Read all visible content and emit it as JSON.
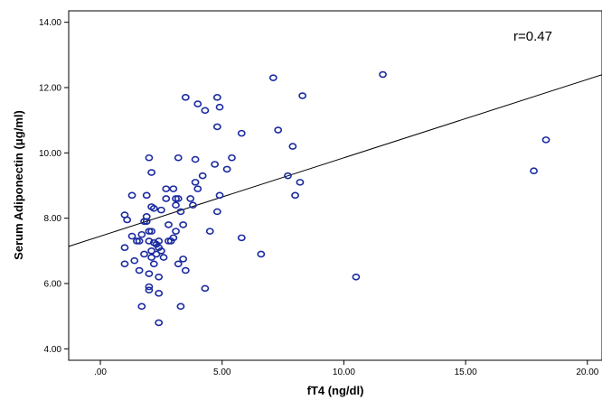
{
  "chart_data": {
    "type": "scatter",
    "xlabel": "fT4 (ng/dl)",
    "ylabel": "Serum Adiponectin (μg/ml)",
    "xlim": [
      -1.3,
      20.6
    ],
    "ylim": [
      3.65,
      14.35
    ],
    "x_ticks": [
      0,
      5,
      10,
      15,
      20
    ],
    "x_tick_labels": [
      ".00",
      "5.00",
      "10.00",
      "15.00",
      "20.00"
    ],
    "y_ticks": [
      4,
      6,
      8,
      10,
      12,
      14
    ],
    "y_tick_labels": [
      "4.00",
      "6.00",
      "8.00",
      "10.00",
      "12.00",
      "14.00"
    ],
    "annotation": "r=0.47",
    "marker_color": "#1a2aa0",
    "fit_line": {
      "intercept": 7.45,
      "slope": 0.24
    },
    "series": [
      {
        "points": [
          [
            1.0,
            8.1
          ],
          [
            1.1,
            7.95
          ],
          [
            1.0,
            7.1
          ],
          [
            1.0,
            6.6
          ],
          [
            1.3,
            8.7
          ],
          [
            1.3,
            7.45
          ],
          [
            1.4,
            6.7
          ],
          [
            1.6,
            7.3
          ],
          [
            1.5,
            7.3
          ],
          [
            1.6,
            6.4
          ],
          [
            1.7,
            5.3
          ],
          [
            1.7,
            7.5
          ],
          [
            1.8,
            7.9
          ],
          [
            1.8,
            6.9
          ],
          [
            1.9,
            8.7
          ],
          [
            1.9,
            8.05
          ],
          [
            1.9,
            7.9
          ],
          [
            2.0,
            9.85
          ],
          [
            2.0,
            7.6
          ],
          [
            2.0,
            7.3
          ],
          [
            2.0,
            6.3
          ],
          [
            2.0,
            5.9
          ],
          [
            2.0,
            5.8
          ],
          [
            2.1,
            9.4
          ],
          [
            2.1,
            8.35
          ],
          [
            2.1,
            7.6
          ],
          [
            2.1,
            7.0
          ],
          [
            2.1,
            6.8
          ],
          [
            2.2,
            8.3
          ],
          [
            2.2,
            7.25
          ],
          [
            2.2,
            6.6
          ],
          [
            2.3,
            7.2
          ],
          [
            2.3,
            6.9
          ],
          [
            2.4,
            7.3
          ],
          [
            2.4,
            7.1
          ],
          [
            2.4,
            6.2
          ],
          [
            2.4,
            5.7
          ],
          [
            2.4,
            4.8
          ],
          [
            2.5,
            8.25
          ],
          [
            2.5,
            7.0
          ],
          [
            2.6,
            6.8
          ],
          [
            2.7,
            8.9
          ],
          [
            2.7,
            8.6
          ],
          [
            2.8,
            7.8
          ],
          [
            2.8,
            7.3
          ],
          [
            2.9,
            7.3
          ],
          [
            3.0,
            8.9
          ],
          [
            3.0,
            7.4
          ],
          [
            3.1,
            8.6
          ],
          [
            3.1,
            8.4
          ],
          [
            3.1,
            7.6
          ],
          [
            3.2,
            9.85
          ],
          [
            3.2,
            8.6
          ],
          [
            3.2,
            6.6
          ],
          [
            3.3,
            8.2
          ],
          [
            3.3,
            5.3
          ],
          [
            3.4,
            7.8
          ],
          [
            3.4,
            6.75
          ],
          [
            3.5,
            11.7
          ],
          [
            3.5,
            6.4
          ],
          [
            3.7,
            8.6
          ],
          [
            3.8,
            8.4
          ],
          [
            3.9,
            9.1
          ],
          [
            3.9,
            9.8
          ],
          [
            4.0,
            8.9
          ],
          [
            4.0,
            11.5
          ],
          [
            4.2,
            9.3
          ],
          [
            4.3,
            11.3
          ],
          [
            4.3,
            5.85
          ],
          [
            4.5,
            7.6
          ],
          [
            4.7,
            9.65
          ],
          [
            4.8,
            11.7
          ],
          [
            4.8,
            10.8
          ],
          [
            4.8,
            8.2
          ],
          [
            4.9,
            11.4
          ],
          [
            4.9,
            8.7
          ],
          [
            5.2,
            9.5
          ],
          [
            5.4,
            9.85
          ],
          [
            5.8,
            10.6
          ],
          [
            5.8,
            7.4
          ],
          [
            6.6,
            6.9
          ],
          [
            7.1,
            12.3
          ],
          [
            7.3,
            10.7
          ],
          [
            7.7,
            9.3
          ],
          [
            7.9,
            10.2
          ],
          [
            8.0,
            8.7
          ],
          [
            8.2,
            9.1
          ],
          [
            8.3,
            11.75
          ],
          [
            10.5,
            6.2
          ],
          [
            11.6,
            12.4
          ],
          [
            17.8,
            9.45
          ],
          [
            18.3,
            10.4
          ]
        ]
      }
    ]
  }
}
